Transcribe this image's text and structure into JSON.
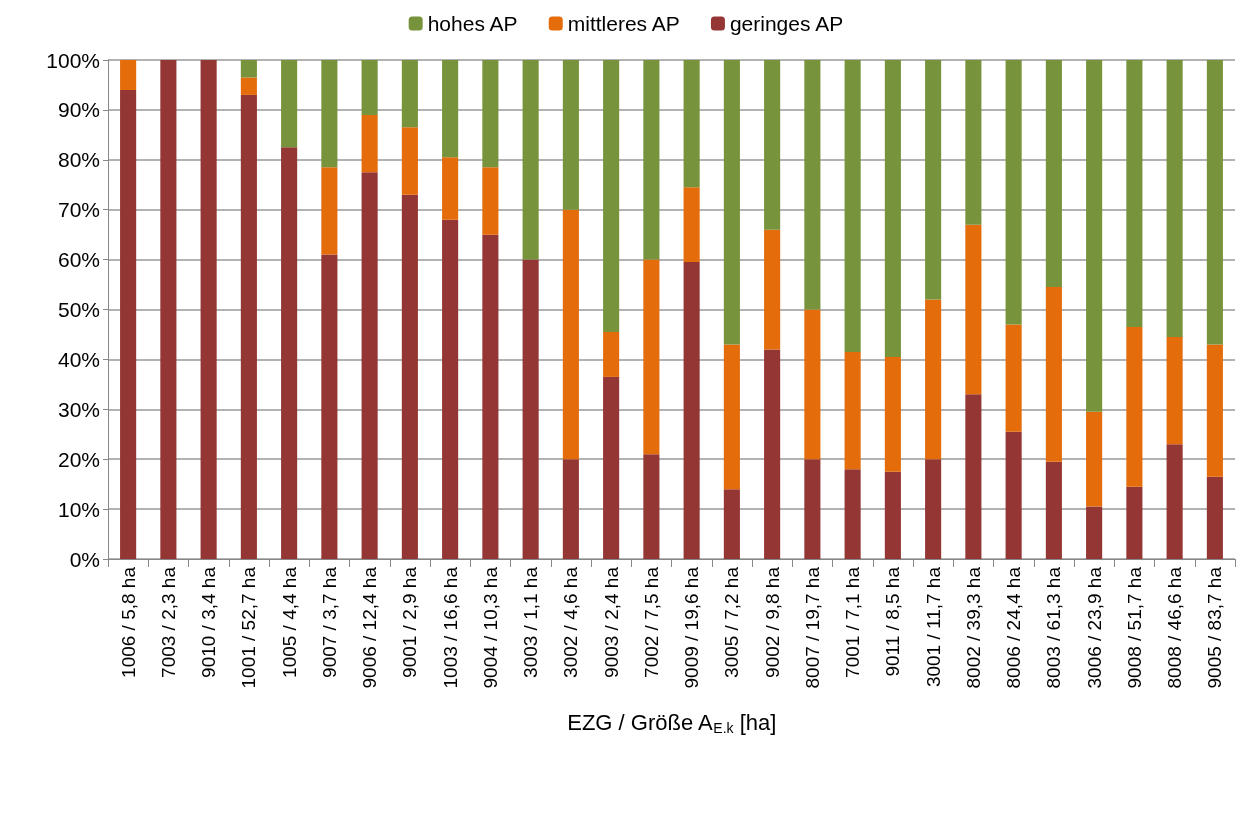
{
  "chart_data": {
    "type": "bar",
    "stacked": true,
    "xlabel": "EZG / Größe A$_{E.k}$ [ha]",
    "categories": [
      "1006 / 5,8 ha",
      "7003 / 2,3 ha",
      "9010 / 3,4 ha",
      "1001 / 52,7 ha",
      "1005 / 4,4 ha",
      "9007 / 3,7 ha",
      "9006 / 12,4 ha",
      "9001 / 2,9 ha",
      "1003 / 16,6 ha",
      "9004 / 10,3 ha",
      "3003 / 1,1 ha",
      "3002 / 4,6 ha",
      "9003 / 2,4 ha",
      "7002 / 7,5 ha",
      "9009 / 19,6 ha",
      "3005 / 7,2 ha",
      "9002 / 9,8 ha",
      "8007 / 19,7 ha",
      "7001 / 7,1 ha",
      "9011 / 8,5 ha",
      "3001 / 11,7 ha",
      "8002 / 39,3 ha",
      "8006 / 24,4 ha",
      "8003 / 61,3 ha",
      "3006 / 23,9 ha",
      "9008 / 51,7 ha",
      "8008 / 46,6 ha",
      "9005 / 83,7 ha"
    ],
    "series": [
      {
        "name": "geringes AP",
        "color": "#943634",
        "values": [
          94,
          100,
          100,
          93,
          82.5,
          61,
          77.5,
          73,
          68,
          65,
          60,
          20,
          36.5,
          21,
          59.5,
          14,
          42,
          20,
          18,
          17.5,
          20,
          33,
          25.5,
          19.5,
          10.5,
          14.5,
          23,
          16.5
        ]
      },
      {
        "name": "mittleres AP",
        "color": "#e46c0a",
        "values": [
          6,
          0,
          0,
          3.5,
          0,
          17.5,
          11.5,
          13.5,
          12.5,
          13.5,
          0,
          50,
          9,
          39,
          15,
          29,
          24,
          30,
          23.5,
          23,
          32,
          34,
          21.5,
          35,
          19,
          32,
          21.5,
          26.5
        ]
      },
      {
        "name": "hohes AP",
        "color": "#77933c",
        "values": [
          0,
          0,
          0,
          3.5,
          17.5,
          21.5,
          11,
          13.5,
          19.5,
          21.5,
          40,
          30,
          54.5,
          40,
          25.5,
          57,
          34,
          50,
          58.5,
          59.5,
          48,
          33,
          53,
          45.5,
          70.5,
          53.5,
          55.5,
          57
        ]
      }
    ],
    "ylim": [
      0,
      100
    ],
    "yticks": [
      {
        "value": 0,
        "label": "0%"
      },
      {
        "value": 10,
        "label": "10%"
      },
      {
        "value": 20,
        "label": "20%"
      },
      {
        "value": 30,
        "label": "30%"
      },
      {
        "value": 40,
        "label": "40%"
      },
      {
        "value": 50,
        "label": "50%"
      },
      {
        "value": 60,
        "label": "60%"
      },
      {
        "value": 70,
        "label": "70%"
      },
      {
        "value": 80,
        "label": "80%"
      },
      {
        "value": 90,
        "label": "90%"
      },
      {
        "value": 100,
        "label": "100%"
      }
    ],
    "grid": "y",
    "legend": "top"
  }
}
